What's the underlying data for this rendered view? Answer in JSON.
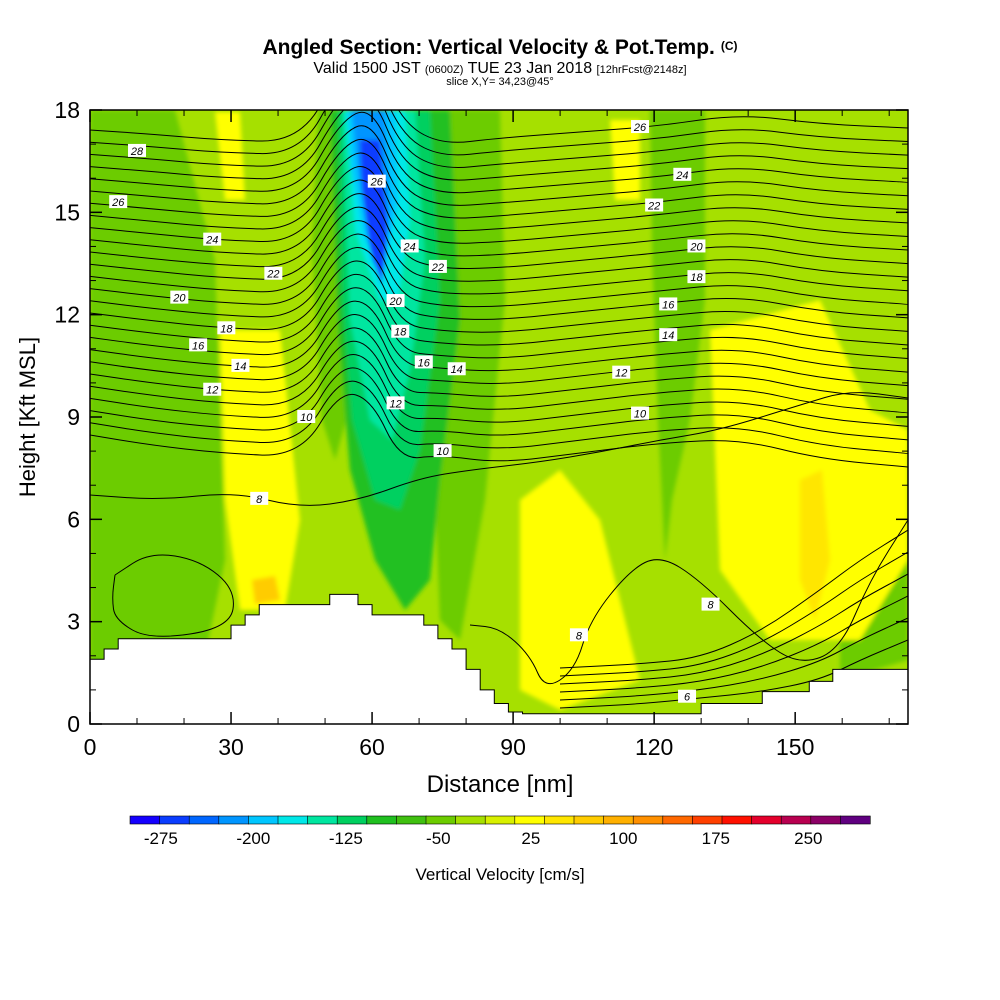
{
  "chart_data": {
    "type": "heatmap",
    "title": "Angled Section: Vertical Velocity & Pot.Temp.",
    "title_mark": "(C)",
    "subtitle_prefix": "Valid 1500 JST",
    "subtitle_small": "(0600Z)",
    "subtitle_date": "TUE 23 Jan 2018",
    "subtitle_run": "[12hrFcst@2148z]",
    "slice": "slice X,Y= 34,23@45°",
    "xlabel": "Distance [nm]",
    "ylabel": "Height [Kft MSL]",
    "xlim": [
      0,
      174
    ],
    "ylim": [
      0,
      18
    ],
    "x_ticks": [
      "0",
      "30",
      "60",
      "90",
      "120",
      "150"
    ],
    "y_ticks": [
      "0",
      "3",
      "6",
      "9",
      "12",
      "15",
      "18"
    ],
    "colorbar": {
      "label": "Vertical Velocity [cm/s]",
      "range": [
        -300,
        300
      ],
      "step": 25,
      "tick_labels": [
        "-275",
        "-200",
        "-125",
        "-50",
        "25",
        "100",
        "175",
        "250"
      ],
      "tick_values": [
        -275,
        -200,
        -125,
        -50,
        25,
        100,
        175,
        250
      ],
      "colors": [
        "#1400ff",
        "#0a3dff",
        "#0066ff",
        "#0095ff",
        "#00c6ff",
        "#00e8e8",
        "#00e6a0",
        "#00d060",
        "#20c020",
        "#40c010",
        "#6ccc00",
        "#a6e000",
        "#d8f000",
        "#ffff00",
        "#ffe600",
        "#ffcc00",
        "#ffb000",
        "#ff9000",
        "#ff6800",
        "#ff4000",
        "#ff1000",
        "#e4002c",
        "#b80050",
        "#8c0066",
        "#600080"
      ]
    },
    "theta_contour_labels": [
      {
        "x": 10,
        "y": 16.8,
        "label": "28"
      },
      {
        "x": 6,
        "y": 15.3,
        "label": "26"
      },
      {
        "x": 26,
        "y": 14.2,
        "label": "24"
      },
      {
        "x": 39,
        "y": 13.2,
        "label": "22"
      },
      {
        "x": 19,
        "y": 12.5,
        "label": "20"
      },
      {
        "x": 29,
        "y": 11.6,
        "label": "18"
      },
      {
        "x": 23,
        "y": 11.1,
        "label": "16"
      },
      {
        "x": 32,
        "y": 10.5,
        "label": "14"
      },
      {
        "x": 26,
        "y": 9.8,
        "label": "12"
      },
      {
        "x": 46,
        "y": 9.0,
        "label": "10"
      },
      {
        "x": 36,
        "y": 6.6,
        "label": "8"
      },
      {
        "x": 61,
        "y": 15.9,
        "label": "26"
      },
      {
        "x": 68,
        "y": 14.0,
        "label": "24"
      },
      {
        "x": 74,
        "y": 13.4,
        "label": "22"
      },
      {
        "x": 65,
        "y": 12.4,
        "label": "20"
      },
      {
        "x": 66,
        "y": 11.5,
        "label": "18"
      },
      {
        "x": 71,
        "y": 10.6,
        "label": "16"
      },
      {
        "x": 78,
        "y": 10.4,
        "label": "14"
      },
      {
        "x": 65,
        "y": 9.4,
        "label": "12"
      },
      {
        "x": 75,
        "y": 8.0,
        "label": "10"
      },
      {
        "x": 117,
        "y": 17.5,
        "label": "26"
      },
      {
        "x": 126,
        "y": 16.1,
        "label": "24"
      },
      {
        "x": 120,
        "y": 15.2,
        "label": "22"
      },
      {
        "x": 129,
        "y": 14.0,
        "label": "20"
      },
      {
        "x": 129,
        "y": 13.1,
        "label": "18"
      },
      {
        "x": 123,
        "y": 12.3,
        "label": "16"
      },
      {
        "x": 123,
        "y": 11.4,
        "label": "14"
      },
      {
        "x": 113,
        "y": 10.3,
        "label": "12"
      },
      {
        "x": 117,
        "y": 9.1,
        "label": "10"
      },
      {
        "x": 132,
        "y": 3.5,
        "label": "8"
      },
      {
        "x": 104,
        "y": 2.6,
        "label": "8"
      },
      {
        "x": 127,
        "y": 0.8,
        "label": "6"
      }
    ]
  }
}
